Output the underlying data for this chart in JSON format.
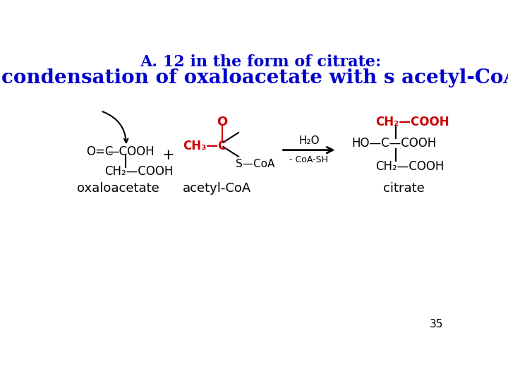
{
  "title1": "A. 12 in the form of citrate:",
  "title2": "condensation of oxaloacetate with s acetyl-CoA",
  "title1_color": "#0000CC",
  "title2_color": "#0000CC",
  "title1_fontsize": 16,
  "title2_fontsize": 20,
  "label_oxaloacetate": "oxaloacetate",
  "label_acetyl": "acetyl-CoA",
  "label_citrate": "citrate",
  "label_color": "#000000",
  "label_fontsize": 13,
  "red_color": "#CC0000",
  "black_color": "#000000",
  "page_num": "35",
  "bg_color": "#FFFFFF"
}
